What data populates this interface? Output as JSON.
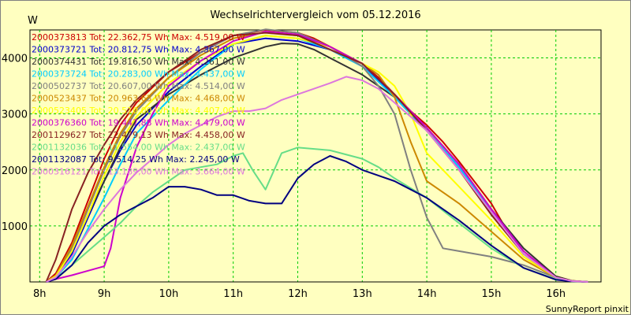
{
  "chart_data": {
    "type": "line",
    "title": "Wechselrichtervergleich vom 05.12.2016",
    "ylabel": "W",
    "xlabel": "",
    "credit": "SunnyReport pinxit",
    "xlim": [
      7.85,
      16.7
    ],
    "ylim": [
      0,
      4500
    ],
    "x_ticks": [
      8,
      9,
      10,
      11,
      12,
      13,
      14,
      15,
      16
    ],
    "x_tick_labels": [
      "8h",
      "9h",
      "10h",
      "11h",
      "12h",
      "13h",
      "14h",
      "15h",
      "16h"
    ],
    "y_ticks": [
      1000,
      2000,
      3000,
      4000
    ],
    "y_tick_labels": [
      "1000",
      "2000",
      "3000",
      "4000"
    ],
    "grid": true,
    "legend_position": "top-left",
    "series": [
      {
        "name": "2000373813 Tot: 22.362,75 Wh Max: 4.519,00 W",
        "color": "#cc0000",
        "x": [
          8.1,
          8.25,
          8.5,
          8.75,
          9.0,
          9.25,
          9.5,
          10.0,
          10.5,
          11.0,
          11.5,
          12.0,
          12.25,
          12.5,
          13.0,
          13.25,
          13.5,
          13.75,
          14.0,
          14.25,
          14.5,
          15.0,
          15.25,
          15.5,
          16.0,
          16.25,
          16.5
        ],
        "y": [
          0,
          150,
          700,
          1450,
          2200,
          2800,
          3200,
          3750,
          4100,
          4400,
          4500,
          4450,
          4350,
          4200,
          3900,
          3650,
          3350,
          3050,
          2800,
          2500,
          2150,
          1400,
          900,
          500,
          100,
          20,
          0
        ]
      },
      {
        "name": "2000373721 Tot: 20.812,75 Wh Max: 4.367,00 W",
        "color": "#0000cc",
        "x": [
          8.1,
          8.25,
          8.5,
          8.75,
          9.0,
          9.25,
          9.5,
          10.0,
          10.5,
          11.0,
          11.5,
          12.0,
          12.5,
          13.0,
          13.25,
          13.5,
          14.0,
          14.5,
          15.0,
          15.5,
          16.0,
          16.25,
          16.5
        ],
        "y": [
          0,
          100,
          500,
          1150,
          1800,
          2350,
          2800,
          3400,
          3850,
          4250,
          4350,
          4300,
          4150,
          3850,
          3600,
          3300,
          2700,
          2050,
          1250,
          500,
          80,
          15,
          0
        ]
      },
      {
        "name": "2000374431 Tot: 19.816,50 Wh Max: 4.261,00 W",
        "color": "#333333",
        "x": [
          8.1,
          8.25,
          8.5,
          8.75,
          9.0,
          9.25,
          9.5,
          10.0,
          10.5,
          11.0,
          11.5,
          11.75,
          12.0,
          12.25,
          12.5,
          13.0,
          13.5,
          14.0,
          14.5,
          15.0,
          15.5,
          16.0,
          16.25,
          16.5
        ],
        "y": [
          0,
          100,
          550,
          1200,
          1800,
          2400,
          2900,
          3350,
          3700,
          4000,
          4200,
          4260,
          4250,
          4150,
          4000,
          3700,
          3300,
          2750,
          2100,
          1300,
          600,
          100,
          20,
          0
        ]
      },
      {
        "name": "2000373724 Tot: 20.283,00 Wh Max: 4.437,00 W",
        "color": "#00ccff",
        "x": [
          8.1,
          8.25,
          8.5,
          8.75,
          9.0,
          9.25,
          9.5,
          10.0,
          10.5,
          11.0,
          11.5,
          12.0,
          12.5,
          13.0,
          13.5,
          14.0,
          14.5,
          15.0,
          15.5,
          16.0,
          16.25,
          16.5
        ],
        "y": [
          0,
          80,
          400,
          950,
          1500,
          2100,
          2650,
          3250,
          3800,
          4250,
          4400,
          4350,
          4150,
          3850,
          3300,
          2700,
          2050,
          1250,
          500,
          80,
          15,
          0
        ]
      },
      {
        "name": "2000502737 Tot: 20.607,00 Wh Max: 4.514,00 W",
        "color": "#808080",
        "x": [
          8.1,
          8.25,
          8.5,
          8.75,
          9.0,
          9.25,
          9.5,
          10.0,
          10.5,
          11.0,
          11.5,
          12.0,
          12.5,
          13.0,
          13.25,
          13.5,
          13.75,
          14.0,
          14.25,
          14.5,
          15.0,
          15.5,
          16.0,
          16.25,
          16.5
        ],
        "y": [
          0,
          100,
          600,
          1300,
          2000,
          2600,
          3050,
          3650,
          4100,
          4400,
          4510,
          4450,
          4200,
          3850,
          3500,
          3000,
          2000,
          1150,
          600,
          550,
          450,
          300,
          80,
          15,
          0
        ]
      },
      {
        "name": "2000523437 Tot: 20.963,63 Wh Max: 4.468,00 W",
        "color": "#cc8800",
        "x": [
          8.1,
          8.25,
          8.5,
          8.75,
          9.0,
          9.25,
          9.5,
          10.0,
          10.5,
          11.0,
          11.5,
          12.0,
          12.5,
          13.0,
          13.25,
          13.5,
          13.75,
          14.0,
          14.25,
          14.5,
          15.0,
          15.5,
          16.0,
          16.25,
          16.5
        ],
        "y": [
          0,
          120,
          650,
          1350,
          2050,
          2650,
          3100,
          3650,
          4050,
          4350,
          4460,
          4400,
          4200,
          3900,
          3700,
          3300,
          2500,
          1800,
          1600,
          1400,
          900,
          400,
          80,
          15,
          0
        ]
      },
      {
        "name": "2000523405 Tot: 20.510,00 Wh Max: 4.407,00 W",
        "color": "#ffff00",
        "x": [
          8.1,
          8.25,
          8.5,
          8.75,
          9.0,
          9.25,
          9.5,
          10.0,
          10.5,
          11.0,
          11.5,
          12.0,
          12.5,
          13.0,
          13.25,
          13.5,
          13.75,
          14.0,
          14.25,
          14.5,
          15.0,
          15.5,
          16.0,
          16.25,
          16.5
        ],
        "y": [
          0,
          100,
          550,
          1200,
          1900,
          2500,
          2950,
          3550,
          3950,
          4250,
          4400,
          4350,
          4200,
          3900,
          3750,
          3500,
          3000,
          2300,
          2000,
          1700,
          1100,
          450,
          80,
          15,
          0
        ]
      },
      {
        "name": "2000376360 Tot: 19.447,88 Wh Max: 4.479,00 W",
        "color": "#cc00cc",
        "x": [
          8.1,
          8.25,
          8.5,
          8.75,
          9.0,
          9.1,
          9.25,
          9.5,
          9.75,
          10.0,
          10.5,
          11.0,
          11.5,
          12.0,
          12.5,
          13.0,
          13.5,
          14.0,
          14.5,
          15.0,
          15.5,
          16.0,
          16.25,
          16.5
        ],
        "y": [
          0,
          50,
          120,
          200,
          280,
          600,
          1500,
          2400,
          3000,
          3500,
          3950,
          4300,
          4470,
          4420,
          4200,
          3900,
          3350,
          2750,
          2100,
          1300,
          550,
          80,
          15,
          0
        ]
      },
      {
        "name": "2001129627 Tot: 22.479,13 Wh Max: 4.458,00 W",
        "color": "#882222",
        "x": [
          8.1,
          8.25,
          8.5,
          8.75,
          9.0,
          9.25,
          9.5,
          10.0,
          10.5,
          11.0,
          11.5,
          12.0,
          12.5,
          13.0,
          13.5,
          14.0,
          14.5,
          15.0,
          15.5,
          16.0,
          16.25,
          16.5
        ],
        "y": [
          0,
          400,
          1300,
          1950,
          2450,
          2900,
          3250,
          3750,
          4150,
          4400,
          4450,
          4400,
          4150,
          3900,
          3350,
          2700,
          2000,
          1200,
          500,
          80,
          15,
          0
        ]
      },
      {
        "name": "2001132036 Tot: 11.554,00 Wh Max: 2.437,00 W",
        "color": "#66dd88",
        "x": [
          8.1,
          8.25,
          8.5,
          8.75,
          9.0,
          9.25,
          9.5,
          9.75,
          10.0,
          10.25,
          10.5,
          10.75,
          11.0,
          11.15,
          11.3,
          11.5,
          11.75,
          12.0,
          12.5,
          13.0,
          13.25,
          13.5,
          14.0,
          14.5,
          15.0,
          15.5,
          16.0,
          16.25,
          16.5
        ],
        "y": [
          0,
          60,
          300,
          550,
          800,
          1050,
          1350,
          1600,
          1800,
          2000,
          2050,
          2100,
          2250,
          2300,
          2000,
          1650,
          2300,
          2400,
          2350,
          2200,
          2050,
          1850,
          1500,
          1050,
          600,
          250,
          50,
          10,
          0
        ]
      },
      {
        "name": "2001132087 Tot: 9.514,25 Wh Max: 2.245,00 W",
        "color": "#000080",
        "x": [
          8.1,
          8.25,
          8.5,
          8.75,
          9.0,
          9.25,
          9.5,
          9.75,
          10.0,
          10.25,
          10.5,
          10.75,
          11.0,
          11.25,
          11.5,
          11.75,
          12.0,
          12.25,
          12.5,
          12.75,
          13.0,
          13.25,
          13.5,
          14.0,
          14.5,
          15.0,
          15.5,
          16.0,
          16.25,
          16.5
        ],
        "y": [
          0,
          50,
          300,
          700,
          1000,
          1200,
          1350,
          1500,
          1700,
          1700,
          1650,
          1550,
          1550,
          1450,
          1400,
          1400,
          1850,
          2100,
          2250,
          2150,
          2000,
          1900,
          1800,
          1500,
          1100,
          650,
          250,
          40,
          10,
          0
        ]
      },
      {
        "name": "2000316121 Tot: 13.189,00 Wh Max: 3.664,00 W",
        "color": "#dd77dd",
        "x": [
          8.1,
          8.25,
          8.5,
          8.75,
          9.0,
          9.25,
          9.5,
          9.75,
          10.0,
          10.25,
          10.5,
          10.75,
          11.0,
          11.25,
          11.5,
          11.75,
          12.0,
          12.25,
          12.5,
          12.75,
          13.0,
          13.25,
          13.5,
          14.0,
          14.5,
          15.0,
          15.5,
          16.0,
          16.25,
          16.5
        ],
        "y": [
          0,
          80,
          450,
          900,
          1300,
          1650,
          1950,
          2200,
          2450,
          2650,
          2800,
          2950,
          3050,
          3050,
          3100,
          3250,
          3350,
          3450,
          3550,
          3664,
          3600,
          3450,
          3200,
          2700,
          2000,
          1250,
          500,
          80,
          15,
          0
        ]
      }
    ]
  }
}
